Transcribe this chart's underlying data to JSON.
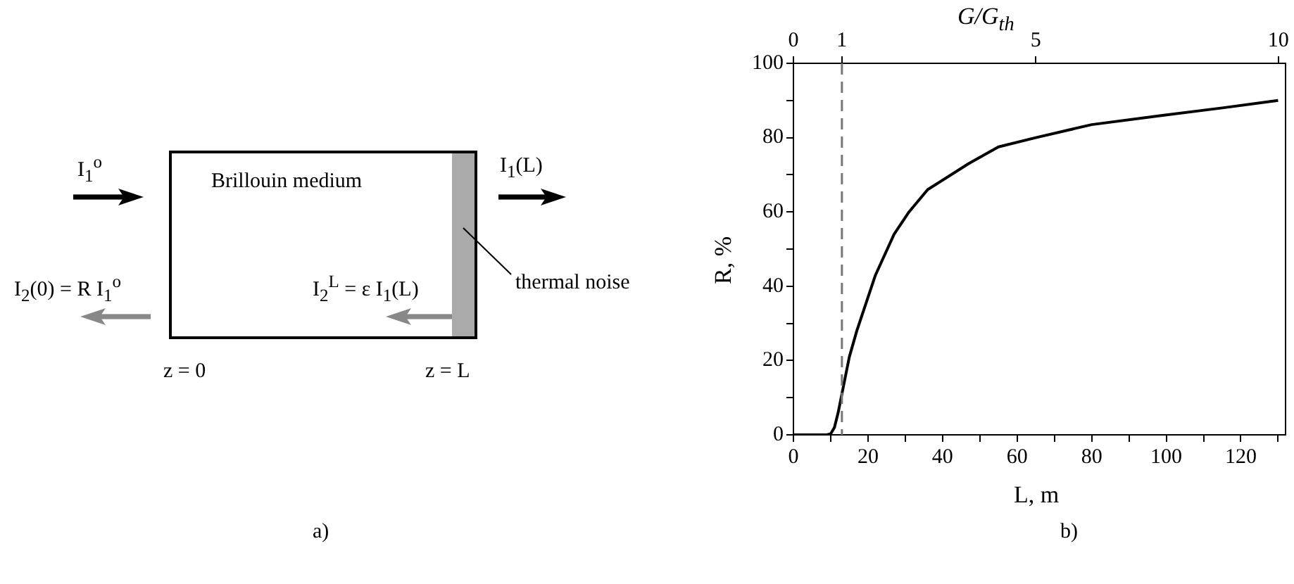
{
  "chart_data": [
    {
      "type": "other",
      "annotations": [
        "I$_{1}$$^{o}$",
        "Brillouin medium",
        "I$_{1}$(L)",
        "I$_{2}$(0) = R I$_{1}$$^{o}$",
        "I$_{2}$$^{L}$ = ε I$_{1}$(L)",
        "thermal noise",
        "z = 0",
        "z = L",
        "a)"
      ]
    },
    {
      "type": "line",
      "xlabel": "L, m",
      "ylabel": "R, %",
      "x2label": "G/G$_{th}$",
      "annotations": [
        "b)"
      ],
      "series": [
        {
          "color": "#000000",
          "x": [
            0,
            9,
            10,
            11,
            12,
            13,
            15,
            17,
            19,
            22,
            27,
            31,
            36,
            47,
            55,
            65,
            80,
            99,
            115,
            130
          ],
          "values": [
            0,
            0,
            0.3,
            2,
            6,
            11,
            21,
            28,
            34,
            43,
            54,
            60,
            66,
            73,
            77.5,
            80,
            83.5,
            86,
            88,
            90
          ]
        }
      ],
      "xlim": [
        0,
        132
      ],
      "xticks": [
        0,
        {
          "value": 10,
          "label": null
        },
        20,
        {
          "value": 30,
          "label": null
        },
        40,
        {
          "value": 50,
          "label": null
        },
        60,
        {
          "value": 70,
          "label": null
        },
        80,
        {
          "value": 90,
          "label": null
        },
        100,
        {
          "value": 110,
          "label": null
        },
        120,
        {
          "value": 130,
          "label": null
        }
      ],
      "x2lim": [
        0,
        10.15
      ],
      "x2ticks": [
        0,
        1,
        5,
        10
      ],
      "ylim": [
        0,
        100
      ],
      "yticks": [
        0,
        {
          "value": 10,
          "label": null
        },
        20,
        {
          "value": 30,
          "label": null
        },
        40,
        {
          "value": 50,
          "label": null
        },
        60,
        {
          "value": 70,
          "label": null
        },
        80,
        {
          "value": 90,
          "label": null
        },
        100
      ],
      "ref_lines": [
        {
          "axis": "x",
          "value": 13,
          "color": "#777777",
          "line_style": "dashed"
        }
      ],
      "grid": false,
      "legend": false,
      "marker": "none",
      "line_style": "solid"
    }
  ]
}
